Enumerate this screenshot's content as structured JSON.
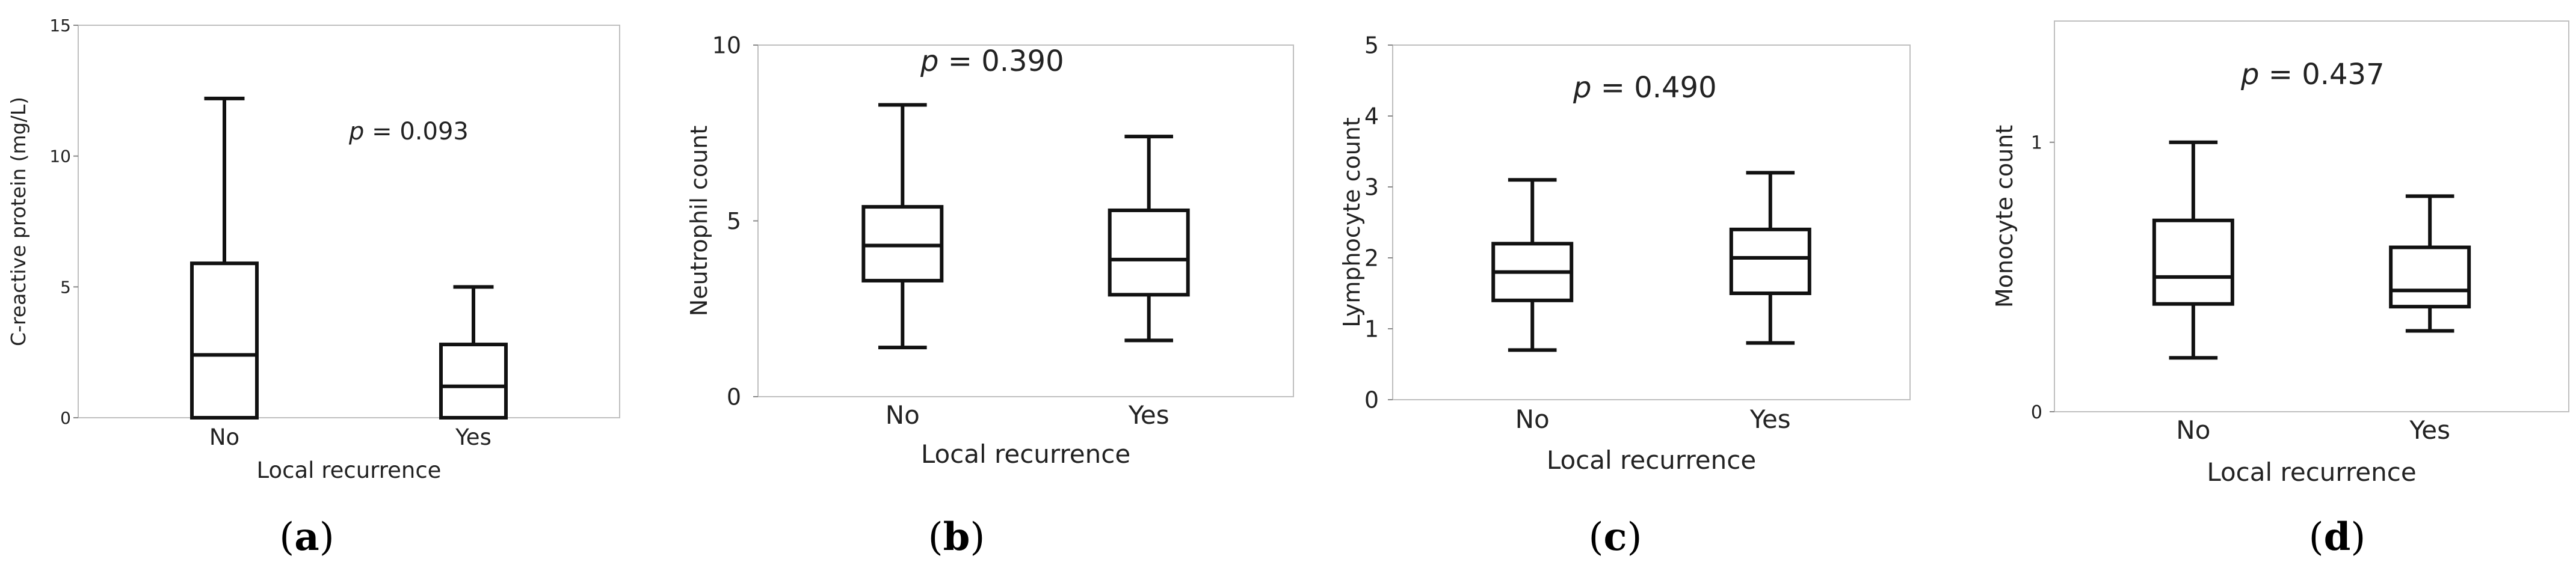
{
  "chart_data": [
    {
      "type": "box",
      "panel_label": "(a)",
      "panel_label_letter": "a",
      "ylabel": "C-reactive protein (mg/L)",
      "xlabel": "Local recurrence",
      "categories": [
        "No",
        "Yes"
      ],
      "ylim": [
        0,
        15
      ],
      "yticks": [
        0,
        5,
        10,
        15
      ],
      "boxes": [
        {
          "category": "No",
          "whisker_low": 0,
          "q1": 0,
          "median": 2.4,
          "q3": 5.9,
          "whisker_high": 12.2
        },
        {
          "category": "Yes",
          "whisker_low": 0,
          "q1": 0,
          "median": 1.2,
          "q3": 2.8,
          "whisker_high": 5.0
        }
      ],
      "annotation": {
        "p_symbol": "p",
        "p_value": " = 0.093"
      }
    },
    {
      "type": "box",
      "panel_label": "(b)",
      "panel_label_letter": "b",
      "ylabel": "Neutrophil count",
      "xlabel": "Local recurrence",
      "categories": [
        "No",
        "Yes"
      ],
      "ylim": [
        0,
        10
      ],
      "yticks": [
        0,
        5,
        10
      ],
      "boxes": [
        {
          "category": "No",
          "whisker_low": 1.4,
          "q1": 3.3,
          "median": 4.3,
          "q3": 5.4,
          "whisker_high": 8.3
        },
        {
          "category": "Yes",
          "whisker_low": 1.6,
          "q1": 2.9,
          "median": 3.9,
          "q3": 5.3,
          "whisker_high": 7.4
        }
      ],
      "annotation": {
        "p_symbol": "p",
        "p_value": " = 0.390"
      }
    },
    {
      "type": "box",
      "panel_label": "(c)",
      "panel_label_letter": "c",
      "ylabel": "Lymphocyte count",
      "xlabel": "Local recurrence",
      "categories": [
        "No",
        "Yes"
      ],
      "ylim": [
        0,
        5
      ],
      "yticks": [
        0,
        1,
        2,
        3,
        4,
        5
      ],
      "boxes": [
        {
          "category": "No",
          "whisker_low": 0.7,
          "q1": 1.4,
          "median": 1.8,
          "q3": 2.2,
          "whisker_high": 3.1
        },
        {
          "category": "Yes",
          "whisker_low": 0.8,
          "q1": 1.5,
          "median": 2.0,
          "q3": 2.4,
          "whisker_high": 3.2
        }
      ],
      "annotation": {
        "p_symbol": "p",
        "p_value": " = 0.490"
      }
    },
    {
      "type": "box",
      "panel_label": "(d)",
      "panel_label_letter": "d",
      "ylabel": "Monocyte count",
      "xlabel": "Local recurrence",
      "categories": [
        "No",
        "Yes"
      ],
      "ylim": [
        0,
        1.45
      ],
      "yticks": [
        0,
        1
      ],
      "boxes": [
        {
          "category": "No",
          "whisker_low": 0.2,
          "q1": 0.4,
          "median": 0.5,
          "q3": 0.71,
          "whisker_high": 1.0
        },
        {
          "category": "Yes",
          "whisker_low": 0.3,
          "q1": 0.39,
          "median": 0.45,
          "q3": 0.61,
          "whisker_high": 0.8
        }
      ],
      "annotation": {
        "p_symbol": "p",
        "p_value": " = 0.437"
      }
    }
  ]
}
